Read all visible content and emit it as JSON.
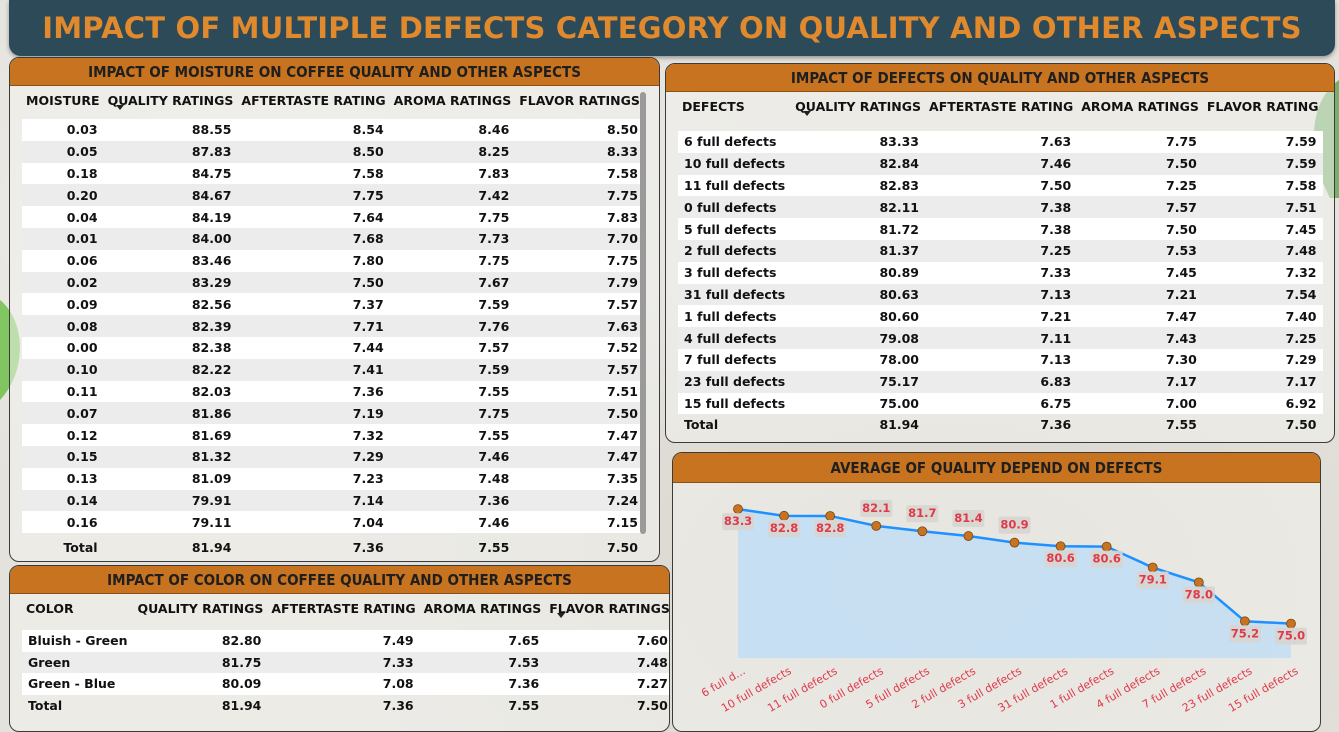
{
  "banner": {
    "title": "IMPACT OF MULTIPLE DEFECTS CATEGORY ON QUALITY AND OTHER ASPECTS"
  },
  "moisture_table": {
    "title": "IMPACT OF MOISTURE ON COFFEE QUALITY AND OTHER ASPECTS",
    "columns": [
      "MOISTURE",
      "QUALITY RATINGS",
      "AFTERTASTE RATING",
      "AROMA RATINGS",
      "FLAVOR RATINGS"
    ],
    "rows": [
      [
        "0.03",
        "88.55",
        "8.54",
        "8.46",
        "8.50"
      ],
      [
        "0.05",
        "87.83",
        "8.50",
        "8.25",
        "8.33"
      ],
      [
        "0.18",
        "84.75",
        "7.58",
        "7.83",
        "7.58"
      ],
      [
        "0.20",
        "84.67",
        "7.75",
        "7.42",
        "7.75"
      ],
      [
        "0.04",
        "84.19",
        "7.64",
        "7.75",
        "7.83"
      ],
      [
        "0.01",
        "84.00",
        "7.68",
        "7.73",
        "7.70"
      ],
      [
        "0.06",
        "83.46",
        "7.80",
        "7.75",
        "7.75"
      ],
      [
        "0.02",
        "83.29",
        "7.50",
        "7.67",
        "7.79"
      ],
      [
        "0.09",
        "82.56",
        "7.37",
        "7.59",
        "7.57"
      ],
      [
        "0.08",
        "82.39",
        "7.71",
        "7.76",
        "7.63"
      ],
      [
        "0.00",
        "82.38",
        "7.44",
        "7.57",
        "7.52"
      ],
      [
        "0.10",
        "82.22",
        "7.41",
        "7.59",
        "7.57"
      ],
      [
        "0.11",
        "82.03",
        "7.36",
        "7.55",
        "7.51"
      ],
      [
        "0.07",
        "81.86",
        "7.19",
        "7.75",
        "7.50"
      ],
      [
        "0.12",
        "81.69",
        "7.32",
        "7.55",
        "7.47"
      ],
      [
        "0.15",
        "81.32",
        "7.29",
        "7.46",
        "7.47"
      ],
      [
        "0.13",
        "81.09",
        "7.23",
        "7.48",
        "7.35"
      ],
      [
        "0.14",
        "79.91",
        "7.14",
        "7.36",
        "7.24"
      ],
      [
        "0.16",
        "79.11",
        "7.04",
        "7.46",
        "7.15"
      ]
    ],
    "total": [
      "Total",
      "81.94",
      "7.36",
      "7.55",
      "7.50"
    ]
  },
  "color_table": {
    "title": "IMPACT OF COLOR ON COFFEE QUALITY AND OTHER ASPECTS",
    "columns": [
      "COLOR",
      "QUALITY RATINGS",
      "AFTERTASTE RATING",
      "AROMA RATINGS",
      "FLAVOR RATINGS"
    ],
    "rows": [
      [
        "Bluish - Green",
        "82.80",
        "7.49",
        "7.65",
        "7.60"
      ],
      [
        "Green",
        "81.75",
        "7.33",
        "7.53",
        "7.48"
      ],
      [
        "Green - Blue",
        "80.09",
        "7.08",
        "7.36",
        "7.27"
      ]
    ],
    "total": [
      "Total",
      "81.94",
      "7.36",
      "7.55",
      "7.50"
    ]
  },
  "defects_table": {
    "title": "IMPACT OF DEFECTS ON QUALITY AND OTHER ASPECTS",
    "columns": [
      "DEFECTS",
      "QUALITY RATINGS",
      "AFTERTASTE RATING",
      "AROMA RATINGS",
      "FLAVOR RATING"
    ],
    "rows": [
      [
        "6 full defects",
        "83.33",
        "7.63",
        "7.75",
        "7.59"
      ],
      [
        "10 full defects",
        "82.84",
        "7.46",
        "7.50",
        "7.59"
      ],
      [
        "11 full defects",
        "82.83",
        "7.50",
        "7.25",
        "7.58"
      ],
      [
        "0 full defects",
        "82.11",
        "7.38",
        "7.57",
        "7.51"
      ],
      [
        "5 full defects",
        "81.72",
        "7.38",
        "7.50",
        "7.45"
      ],
      [
        "2 full defects",
        "81.37",
        "7.25",
        "7.53",
        "7.48"
      ],
      [
        "3 full defects",
        "80.89",
        "7.33",
        "7.45",
        "7.32"
      ],
      [
        "31 full defects",
        "80.63",
        "7.13",
        "7.21",
        "7.54"
      ],
      [
        "1 full defects",
        "80.60",
        "7.21",
        "7.47",
        "7.40"
      ],
      [
        "4 full defects",
        "79.08",
        "7.11",
        "7.43",
        "7.25"
      ],
      [
        "7 full defects",
        "78.00",
        "7.13",
        "7.30",
        "7.29"
      ],
      [
        "23 full defects",
        "75.17",
        "6.83",
        "7.17",
        "7.17"
      ],
      [
        "15 full defects",
        "75.00",
        "6.75",
        "7.00",
        "6.92"
      ]
    ],
    "total": [
      "Total",
      "81.94",
      "7.36",
      "7.55",
      "7.50"
    ]
  },
  "quality_chart": {
    "title": "AVERAGE OF QUALITY DEPEND ON DEFECTS",
    "line_color": "#1e90ff",
    "area_color": "#bcdcf7",
    "marker_color": "#c8731f",
    "label_color": "#e0394a"
  },
  "chart_data": {
    "type": "area",
    "title": "AVERAGE OF QUALITY DEPEND ON DEFECTS",
    "categories": [
      "6 full d...",
      "10 full defects",
      "11 full defects",
      "0 full defects",
      "5 full defects",
      "2 full defects",
      "3 full defects",
      "31 full defects",
      "1 full defects",
      "4 full defects",
      "7 full defects",
      "23 full defects",
      "15 full defects"
    ],
    "values": [
      83.33,
      82.84,
      82.83,
      82.11,
      81.72,
      81.37,
      80.89,
      80.63,
      80.6,
      79.08,
      78.0,
      75.17,
      75.0
    ],
    "data_labels": [
      "83.3",
      "82.8",
      "82.8",
      "82.1",
      "81.7",
      "81.4",
      "80.9",
      "80.6",
      "80.6",
      "79.1",
      "78.0",
      "75.2",
      "75.0"
    ],
    "ylim": [
      72.5,
      84.5
    ],
    "grid": false
  }
}
